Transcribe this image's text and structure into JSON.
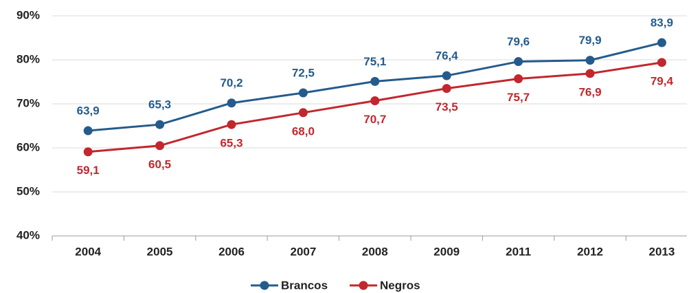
{
  "chart_data": {
    "type": "line",
    "categories": [
      "2004",
      "2005",
      "2006",
      "2007",
      "2008",
      "2009",
      "2011",
      "2012",
      "2013"
    ],
    "series": [
      {
        "name": "Brancos",
        "color": "#245b8c",
        "values": [
          63.9,
          65.3,
          70.2,
          72.5,
          75.1,
          76.4,
          79.6,
          79.9,
          83.9
        ],
        "value_labels": [
          "63,9",
          "65,3",
          "70,2",
          "72,5",
          "75,1",
          "76,4",
          "79,6",
          "79,9",
          "83,9"
        ]
      },
      {
        "name": "Negros",
        "color": "#c1272d",
        "values": [
          59.1,
          60.5,
          65.3,
          68.0,
          70.7,
          73.5,
          75.7,
          76.9,
          79.4
        ],
        "value_labels": [
          "59,1",
          "60,5",
          "65,3",
          "68,0",
          "70,7",
          "73,5",
          "75,7",
          "76,9",
          "79,4"
        ]
      }
    ],
    "ylim": [
      40,
      90
    ],
    "yticks": [
      {
        "value": 40,
        "label": "40%"
      },
      {
        "value": 50,
        "label": "50%"
      },
      {
        "value": 60,
        "label": "60%"
      },
      {
        "value": 70,
        "label": "70%"
      },
      {
        "value": 80,
        "label": "80%"
      },
      {
        "value": 90,
        "label": "90%"
      }
    ],
    "grid": true
  }
}
